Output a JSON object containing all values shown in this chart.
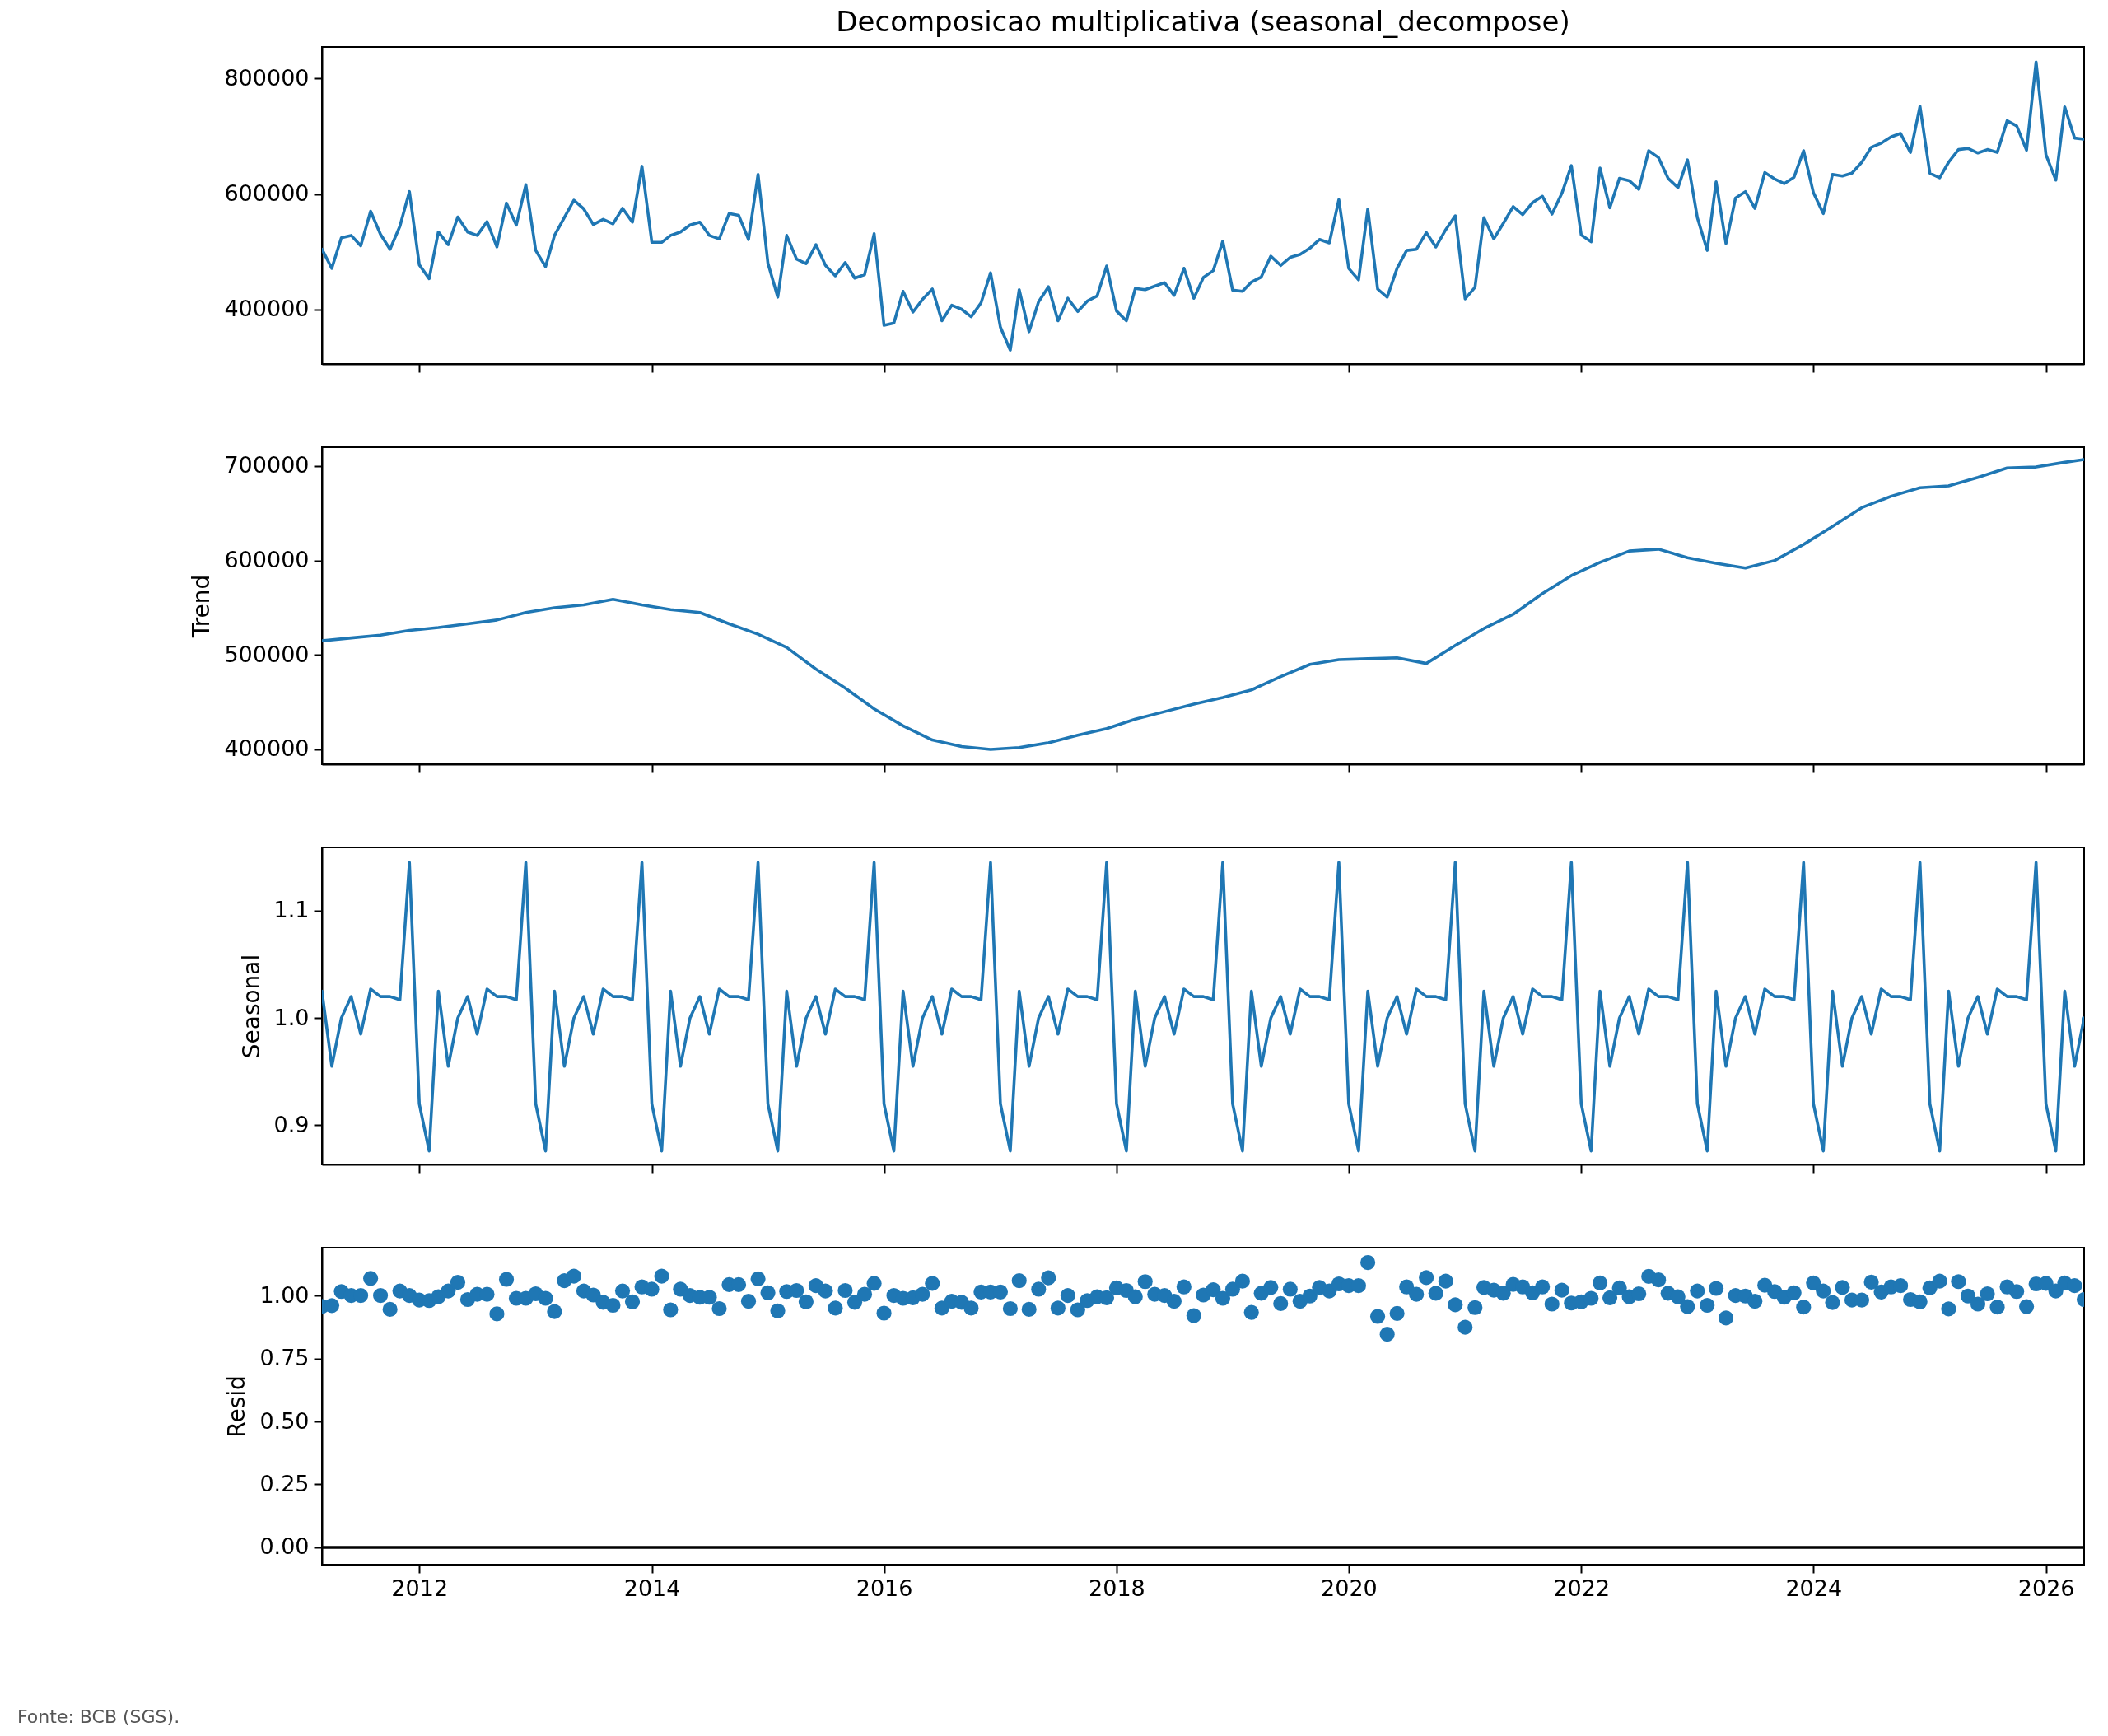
{
  "chart_data": [
    {
      "type": "line",
      "title": "Decomposicao multiplicativa (seasonal_decompose)",
      "color": "#1f77b4",
      "tick_labels": "y",
      "x": [
        "2011-03",
        "2011-04",
        "2011-05",
        "2011-06",
        "2011-07",
        "2011-08",
        "2011-09",
        "2011-10",
        "2011-11",
        "2011-12",
        "2012-01",
        "2012-02",
        "2012-03",
        "2012-04",
        "2012-05",
        "2012-06",
        "2012-07",
        "2012-08",
        "2012-09",
        "2012-10",
        "2012-11",
        "2012-12",
        "2013-01",
        "2013-02",
        "2013-03",
        "2013-04",
        "2013-05",
        "2013-06",
        "2013-07",
        "2013-08",
        "2013-09",
        "2013-10",
        "2013-11",
        "2013-12",
        "2014-01",
        "2014-02",
        "2014-03",
        "2014-04",
        "2014-05",
        "2014-06",
        "2014-07",
        "2014-08",
        "2014-09",
        "2014-10",
        "2014-11",
        "2014-12",
        "2015-01",
        "2015-02",
        "2015-03",
        "2015-04",
        "2015-05",
        "2015-06",
        "2015-07",
        "2015-08",
        "2015-09",
        "2015-10",
        "2015-11",
        "2015-12",
        "2016-01",
        "2016-02",
        "2016-03",
        "2016-04",
        "2016-05",
        "2016-06",
        "2016-07",
        "2016-08",
        "2016-09",
        "2016-10",
        "2016-11",
        "2016-12",
        "2017-01",
        "2017-02",
        "2017-03",
        "2017-04",
        "2017-05",
        "2017-06",
        "2017-07",
        "2017-08",
        "2017-09",
        "2017-10",
        "2017-11",
        "2017-12",
        "2018-01",
        "2018-02",
        "2018-03",
        "2018-04",
        "2018-05",
        "2018-06",
        "2018-07",
        "2018-08",
        "2018-09",
        "2018-10",
        "2018-11",
        "2018-12",
        "2019-01",
        "2019-02",
        "2019-03",
        "2019-04",
        "2019-05",
        "2019-06",
        "2019-07",
        "2019-08",
        "2019-09",
        "2019-10",
        "2019-11",
        "2019-12",
        "2020-01",
        "2020-02",
        "2020-03",
        "2020-04",
        "2020-05",
        "2020-06",
        "2020-07",
        "2020-08",
        "2020-09",
        "2020-10",
        "2020-11",
        "2020-12",
        "2021-01",
        "2021-02",
        "2021-03",
        "2021-04",
        "2021-05",
        "2021-06",
        "2021-07",
        "2021-08",
        "2021-09",
        "2021-10",
        "2021-11",
        "2021-12",
        "2022-01",
        "2022-02",
        "2022-03",
        "2022-04",
        "2022-05",
        "2022-06",
        "2022-07",
        "2022-08",
        "2022-09",
        "2022-10",
        "2022-11",
        "2022-12",
        "2023-01",
        "2023-02",
        "2023-03",
        "2023-04",
        "2023-05",
        "2023-06",
        "2023-07",
        "2023-08",
        "2023-09",
        "2023-10",
        "2023-11",
        "2023-12",
        "2024-01",
        "2024-02",
        "2024-03",
        "2024-04",
        "2024-05",
        "2024-06",
        "2024-07",
        "2024-08",
        "2024-09",
        "2024-10",
        "2024-11",
        "2024-12",
        "2025-01",
        "2025-02",
        "2025-03",
        "2025-04",
        "2025-05",
        "2025-06",
        "2025-07",
        "2025-08",
        "2025-09",
        "2025-10",
        "2025-11",
        "2025-12",
        "2026-01",
        "2026-02",
        "2026-03",
        "2026-04",
        "2026-05"
      ],
      "values": [
        504000,
        471000,
        524000,
        528000,
        510000,
        570000,
        530000,
        504000,
        544000,
        604000,
        477000,
        453000,
        534000,
        512000,
        560000,
        534000,
        528000,
        552000,
        508000,
        584000,
        546000,
        616000,
        502000,
        474000,
        528000,
        559000,
        589000,
        574000,
        547000,
        556000,
        548000,
        575000,
        551000,
        648000,
        516000,
        516000,
        528000,
        534000,
        546000,
        551000,
        528000,
        522000,
        566000,
        563000,
        521000,
        634000,
        480000,
        421000,
        528000,
        487000,
        479000,
        512000,
        476000,
        458000,
        481000,
        454000,
        460000,
        531000,
        372000,
        376000,
        431000,
        395000,
        417000,
        435000,
        380000,
        407000,
        400000,
        387000,
        411000,
        463000,
        369000,
        329000,
        434000,
        361000,
        413000,
        439000,
        380000,
        419000,
        396000,
        414000,
        423000,
        475000,
        397000,
        380000,
        436000,
        434000,
        440000,
        446000,
        424000,
        471000,
        419000,
        455000,
        467000,
        518000,
        433000,
        431000,
        447000,
        456000,
        492000,
        476000,
        490000,
        495000,
        506000,
        521000,
        515000,
        590000,
        471000,
        451000,
        574000,
        435000,
        421000,
        471000,
        502000,
        504000,
        533000,
        508000,
        538000,
        562000,
        418000,
        438000,
        559000,
        522000,
        549000,
        578000,
        564000,
        585000,
        596000,
        565000,
        601000,
        649000,
        529000,
        517000,
        645000,
        576000,
        627000,
        623000,
        608000,
        675000,
        663000,
        627000,
        611000,
        659000,
        559000,
        502000,
        621000,
        514000,
        593000,
        604000,
        575000,
        637000,
        626000,
        618000,
        629000,
        675000,
        602000,
        566000,
        634000,
        631000,
        636000,
        655000,
        681000,
        688000,
        699000,
        705000,
        672000,
        752000,
        636000,
        628000,
        655000,
        677000,
        679000,
        671000,
        677000,
        672000,
        727000,
        718000,
        676000,
        829000,
        668000,
        624000,
        751000,
        697000,
        695000
      ],
      "xlim": [
        "2011-03",
        "2026-05"
      ],
      "xticks": [
        "2012",
        "2014",
        "2016",
        "2018",
        "2020",
        "2022",
        "2024",
        "2026"
      ],
      "ylim": [
        305000,
        855000
      ],
      "yticks": [
        400000,
        600000,
        800000
      ]
    },
    {
      "type": "line",
      "ylabel": "Trend",
      "color": "#1f77b4",
      "tick_labels": "y",
      "x": [
        "2011-03",
        "2011-06",
        "2011-09",
        "2011-12",
        "2012-03",
        "2012-06",
        "2012-09",
        "2012-12",
        "2013-03",
        "2013-06",
        "2013-09",
        "2013-12",
        "2014-03",
        "2014-06",
        "2014-09",
        "2014-12",
        "2015-03",
        "2015-06",
        "2015-09",
        "2015-12",
        "2016-03",
        "2016-06",
        "2016-09",
        "2016-12",
        "2017-03",
        "2017-06",
        "2017-09",
        "2017-12",
        "2018-03",
        "2018-06",
        "2018-09",
        "2018-12",
        "2019-03",
        "2019-06",
        "2019-09",
        "2019-12",
        "2020-03",
        "2020-06",
        "2020-09",
        "2020-12",
        "2021-03",
        "2021-06",
        "2021-09",
        "2021-12",
        "2022-03",
        "2022-06",
        "2022-09",
        "2022-12",
        "2023-03",
        "2023-06",
        "2023-09",
        "2023-12",
        "2024-03",
        "2024-06",
        "2024-09",
        "2024-12",
        "2025-03",
        "2025-06",
        "2025-09",
        "2025-12",
        "2026-03",
        "2026-05"
      ],
      "values": [
        515000,
        518000,
        521000,
        526000,
        529000,
        533000,
        537000,
        545000,
        550000,
        553000,
        559000,
        553000,
        548000,
        545000,
        533000,
        522000,
        508000,
        485000,
        465000,
        443000,
        425000,
        410000,
        403000,
        400000,
        402000,
        407000,
        415000,
        422000,
        432000,
        440000,
        448000,
        455000,
        463000,
        477000,
        490000,
        495000,
        496000,
        497000,
        491000,
        510000,
        528000,
        543000,
        565000,
        584000,
        598000,
        610000,
        612000,
        603000,
        597000,
        592000,
        600000,
        617000,
        636000,
        656000,
        668000,
        677000,
        679000,
        688000,
        698000,
        699000,
        704000,
        707000
      ],
      "xlim": [
        "2011-03",
        "2026-05"
      ],
      "xticks": [
        "2012",
        "2014",
        "2016",
        "2018",
        "2020",
        "2022",
        "2024",
        "2026"
      ],
      "ylim": [
        384300,
        720000
      ],
      "yticks": [
        400000,
        500000,
        600000,
        700000
      ]
    },
    {
      "type": "line",
      "ylabel": "Seasonal",
      "color": "#1f77b4",
      "tick_labels": "y",
      "x": [
        "2011-03",
        "2011-04",
        "2011-05",
        "2011-06",
        "2011-07",
        "2011-08",
        "2011-09",
        "2011-10",
        "2011-11",
        "2011-12",
        "2012-01",
        "2012-02",
        "2012-03",
        "2012-04",
        "2012-05",
        "2012-06",
        "2012-07",
        "2012-08",
        "2012-09",
        "2012-10",
        "2012-11",
        "2012-12",
        "2013-01",
        "2013-02",
        "2013-03",
        "2013-04",
        "2013-05",
        "2013-06",
        "2013-07",
        "2013-08",
        "2013-09",
        "2013-10",
        "2013-11",
        "2013-12",
        "2014-01",
        "2014-02",
        "2014-03",
        "2014-04",
        "2014-05",
        "2014-06",
        "2014-07",
        "2014-08",
        "2014-09",
        "2014-10",
        "2014-11",
        "2014-12",
        "2015-01",
        "2015-02",
        "2015-03",
        "2015-04",
        "2015-05",
        "2015-06",
        "2015-07",
        "2015-08",
        "2015-09",
        "2015-10",
        "2015-11",
        "2015-12",
        "2016-01",
        "2016-02",
        "2016-03",
        "2016-04",
        "2016-05",
        "2016-06",
        "2016-07",
        "2016-08",
        "2016-09",
        "2016-10",
        "2016-11",
        "2016-12",
        "2017-01",
        "2017-02",
        "2017-03",
        "2017-04",
        "2017-05",
        "2017-06",
        "2017-07",
        "2017-08",
        "2017-09",
        "2017-10",
        "2017-11",
        "2017-12",
        "2018-01",
        "2018-02",
        "2018-03",
        "2018-04",
        "2018-05",
        "2018-06",
        "2018-07",
        "2018-08",
        "2018-09",
        "2018-10",
        "2018-11",
        "2018-12",
        "2019-01",
        "2019-02",
        "2019-03",
        "2019-04",
        "2019-05",
        "2019-06",
        "2019-07",
        "2019-08",
        "2019-09",
        "2019-10",
        "2019-11",
        "2019-12",
        "2020-01",
        "2020-02",
        "2020-03",
        "2020-04",
        "2020-05",
        "2020-06",
        "2020-07",
        "2020-08",
        "2020-09",
        "2020-10",
        "2020-11",
        "2020-12",
        "2021-01",
        "2021-02",
        "2021-03",
        "2021-04",
        "2021-05",
        "2021-06",
        "2021-07",
        "2021-08",
        "2021-09",
        "2021-10",
        "2021-11",
        "2021-12",
        "2022-01",
        "2022-02",
        "2022-03",
        "2022-04",
        "2022-05",
        "2022-06",
        "2022-07",
        "2022-08",
        "2022-09",
        "2022-10",
        "2022-11",
        "2022-12",
        "2023-01",
        "2023-02",
        "2023-03",
        "2023-04",
        "2023-05",
        "2023-06",
        "2023-07",
        "2023-08",
        "2023-09",
        "2023-10",
        "2023-11",
        "2023-12",
        "2024-01",
        "2024-02",
        "2024-03",
        "2024-04",
        "2024-05",
        "2024-06",
        "2024-07",
        "2024-08",
        "2024-09",
        "2024-10",
        "2024-11",
        "2024-12",
        "2025-01",
        "2025-02",
        "2025-03",
        "2025-04",
        "2025-05",
        "2025-06",
        "2025-07",
        "2025-08",
        "2025-09",
        "2025-10",
        "2025-11",
        "2025-12",
        "2026-01",
        "2026-02",
        "2026-03",
        "2026-04",
        "2026-05"
      ],
      "values": [
        1.025,
        0.955,
        1.0,
        1.02,
        0.985,
        1.027,
        1.02,
        1.02,
        1.017,
        1.145,
        0.92,
        0.876,
        1.025,
        0.955,
        1.0,
        1.02,
        0.985,
        1.027,
        1.02,
        1.02,
        1.017,
        1.145,
        0.92,
        0.876,
        1.025,
        0.955,
        1.0,
        1.02,
        0.985,
        1.027,
        1.02,
        1.02,
        1.017,
        1.145,
        0.92,
        0.876,
        1.025,
        0.955,
        1.0,
        1.02,
        0.985,
        1.027,
        1.02,
        1.02,
        1.017,
        1.145,
        0.92,
        0.876,
        1.025,
        0.955,
        1.0,
        1.02,
        0.985,
        1.027,
        1.02,
        1.02,
        1.017,
        1.145,
        0.92,
        0.876,
        1.025,
        0.955,
        1.0,
        1.02,
        0.985,
        1.027,
        1.02,
        1.02,
        1.017,
        1.145,
        0.92,
        0.876,
        1.025,
        0.955,
        1.0,
        1.02,
        0.985,
        1.027,
        1.02,
        1.02,
        1.017,
        1.145,
        0.92,
        0.876,
        1.025,
        0.955,
        1.0,
        1.02,
        0.985,
        1.027,
        1.02,
        1.02,
        1.017,
        1.145,
        0.92,
        0.876,
        1.025,
        0.955,
        1.0,
        1.02,
        0.985,
        1.027,
        1.02,
        1.02,
        1.017,
        1.145,
        0.92,
        0.876,
        1.025,
        0.955,
        1.0,
        1.02,
        0.985,
        1.027,
        1.02,
        1.02,
        1.017,
        1.145,
        0.92,
        0.876,
        1.025,
        0.955,
        1.0,
        1.02,
        0.985,
        1.027,
        1.02,
        1.02,
        1.017,
        1.145,
        0.92,
        0.876,
        1.025,
        0.955,
        1.0,
        1.02,
        0.985,
        1.027,
        1.02,
        1.02,
        1.017,
        1.145,
        0.92,
        0.876,
        1.025,
        0.955,
        1.0,
        1.02,
        0.985,
        1.027,
        1.02,
        1.02,
        1.017,
        1.145,
        0.92,
        0.876,
        1.025,
        0.955,
        1.0,
        1.02,
        0.985,
        1.027,
        1.02,
        1.02,
        1.017,
        1.145,
        0.92,
        0.876,
        1.025,
        0.955,
        1.0,
        1.02,
        0.985,
        1.027,
        1.02,
        1.02,
        1.017,
        1.145,
        0.92,
        0.876,
        1.025,
        0.955,
        1.0
      ],
      "xlim": [
        "2011-03",
        "2026-05"
      ],
      "xticks": [
        "2012",
        "2014",
        "2016",
        "2018",
        "2020",
        "2022",
        "2024",
        "2026"
      ],
      "ylim": [
        0.8635,
        1.159
      ],
      "yticks": [
        0.9,
        {
          "value": 1.0,
          "label": "1.0"
        },
        1.1
      ]
    },
    {
      "type": "scatter",
      "ylabel": "Resid",
      "color": "#1f77b4",
      "x": [
        "2011-03",
        "2011-04",
        "2011-05",
        "2011-06",
        "2011-07",
        "2011-08",
        "2011-09",
        "2011-10",
        "2011-11",
        "2011-12",
        "2012-01",
        "2012-02",
        "2012-03",
        "2012-04",
        "2012-05",
        "2012-06",
        "2012-07",
        "2012-08",
        "2012-09",
        "2012-10",
        "2012-11",
        "2012-12",
        "2013-01",
        "2013-02",
        "2013-03",
        "2013-04",
        "2013-05",
        "2013-06",
        "2013-07",
        "2013-08",
        "2013-09",
        "2013-10",
        "2013-11",
        "2013-12",
        "2014-01",
        "2014-02",
        "2014-03",
        "2014-04",
        "2014-05",
        "2014-06",
        "2014-07",
        "2014-08",
        "2014-09",
        "2014-10",
        "2014-11",
        "2014-12",
        "2015-01",
        "2015-02",
        "2015-03",
        "2015-04",
        "2015-05",
        "2015-06",
        "2015-07",
        "2015-08",
        "2015-09",
        "2015-10",
        "2015-11",
        "2015-12",
        "2016-01",
        "2016-02",
        "2016-03",
        "2016-04",
        "2016-05",
        "2016-06",
        "2016-07",
        "2016-08",
        "2016-09",
        "2016-10",
        "2016-11",
        "2016-12",
        "2017-01",
        "2017-02",
        "2017-03",
        "2017-04",
        "2017-05",
        "2017-06",
        "2017-07",
        "2017-08",
        "2017-09",
        "2017-10",
        "2017-11",
        "2017-12",
        "2018-01",
        "2018-02",
        "2018-03",
        "2018-04",
        "2018-05",
        "2018-06",
        "2018-07",
        "2018-08",
        "2018-09",
        "2018-10",
        "2018-11",
        "2018-12",
        "2019-01",
        "2019-02",
        "2019-03",
        "2019-04",
        "2019-05",
        "2019-06",
        "2019-07",
        "2019-08",
        "2019-09",
        "2019-10",
        "2019-11",
        "2019-12",
        "2020-01",
        "2020-02",
        "2020-03",
        "2020-04",
        "2020-05",
        "2020-06",
        "2020-07",
        "2020-08",
        "2020-09",
        "2020-10",
        "2020-11",
        "2020-12",
        "2021-01",
        "2021-02",
        "2021-03",
        "2021-04",
        "2021-05",
        "2021-06",
        "2021-07",
        "2021-08",
        "2021-09",
        "2021-10",
        "2021-11",
        "2021-12",
        "2022-01",
        "2022-02",
        "2022-03",
        "2022-04",
        "2022-05",
        "2022-06",
        "2022-07",
        "2022-08",
        "2022-09",
        "2022-10",
        "2022-11",
        "2022-12",
        "2023-01",
        "2023-02",
        "2023-03",
        "2023-04",
        "2023-05",
        "2023-06",
        "2023-07",
        "2023-08",
        "2023-09",
        "2023-10",
        "2023-11",
        "2023-12",
        "2024-01",
        "2024-02",
        "2024-03",
        "2024-04",
        "2024-05",
        "2024-06",
        "2024-07",
        "2024-08",
        "2024-09",
        "2024-10",
        "2024-11",
        "2024-12",
        "2025-01",
        "2025-02",
        "2025-03",
        "2025-04",
        "2025-05",
        "2025-06",
        "2025-07",
        "2025-08",
        "2025-09",
        "2025-10",
        "2025-11",
        "2025-12",
        "2026-01",
        "2026-02",
        "2026-03",
        "2026-04",
        "2026-05"
      ],
      "values": [
        0.957,
        0.96,
        1.016,
        1.0,
        1.0,
        1.068,
        1.0,
        0.945,
        1.018,
        1.0,
        0.982,
        0.98,
        0.995,
        1.018,
        1.052,
        0.984,
        1.005,
        1.005,
        0.927,
        1.064,
        0.989,
        0.989,
        1.007,
        0.989,
        0.936,
        1.059,
        1.077,
        1.018,
        1.002,
        0.973,
        0.961,
        1.018,
        0.975,
        1.034,
        1.025,
        1.077,
        0.943,
        1.025,
        1.0,
        0.993,
        0.993,
        0.948,
        1.043,
        1.043,
        0.977,
        1.066,
        1.011,
        0.939,
        1.016,
        1.02,
        0.975,
        1.039,
        1.018,
        0.95,
        1.02,
        0.973,
        1.005,
        1.048,
        0.93,
        1.0,
        0.989,
        0.991,
        1.005,
        1.048,
        0.95,
        0.977,
        0.973,
        0.95,
        1.014,
        1.014,
        1.014,
        0.948,
        1.059,
        0.945,
        1.025,
        1.07,
        0.95,
        1.0,
        0.943,
        0.98,
        0.995,
        0.991,
        1.03,
        1.02,
        0.995,
        1.055,
        1.005,
        1.0,
        0.977,
        1.034,
        0.92,
        1.002,
        1.023,
        0.989,
        1.025,
        1.057,
        0.933,
        1.009,
        1.032,
        0.968,
        1.025,
        0.977,
        0.998,
        1.032,
        1.018,
        1.046,
        1.039,
        1.039,
        1.131,
        0.917,
        0.846,
        0.929,
        1.034,
        1.005,
        1.071,
        1.009,
        1.057,
        0.963,
        0.874,
        0.952,
        1.032,
        1.021,
        1.009,
        1.044,
        1.034,
        1.011,
        1.034,
        0.966,
        1.021,
        0.97,
        0.975,
        0.989,
        1.05,
        0.991,
        1.03,
        0.995,
        1.007,
        1.076,
        1.062,
        1.009,
        0.995,
        0.956,
        1.018,
        0.961,
        1.028,
        0.911,
        1.0,
        0.998,
        0.977,
        1.041,
        1.016,
        0.993,
        1.011,
        0.954,
        1.05,
        1.018,
        0.972,
        1.032,
        0.982,
        0.982,
        1.053,
        1.014,
        1.034,
        1.039,
        0.984,
        0.975,
        1.03,
        1.057,
        0.947,
        1.055,
        0.998,
        0.966,
        1.007,
        0.954,
        1.034,
        1.016,
        0.956,
        1.046,
        1.048,
        1.018,
        1.05,
        1.039,
        0.984
      ],
      "xlim": [
        "2011-03",
        "2026-05"
      ],
      "xticks": [
        "2012",
        "2014",
        "2016",
        "2018",
        "2020",
        "2022",
        "2024",
        "2026"
      ],
      "ylim": [
        -0.069,
        1.19
      ],
      "yticks": [
        {
          "value": 0,
          "label": "0.00"
        },
        {
          "value": 0.25,
          "label": "0.25"
        },
        {
          "value": 0.5,
          "label": "0.50"
        },
        {
          "value": 0.75,
          "label": "0.75"
        },
        {
          "value": 1.0,
          "label": "1.00"
        }
      ],
      "ref_lines": [
        {
          "axis": "y",
          "value": 0,
          "color": "#000000"
        }
      ],
      "annotations": [
        "Fonte: BCB (SGS)."
      ]
    }
  ]
}
